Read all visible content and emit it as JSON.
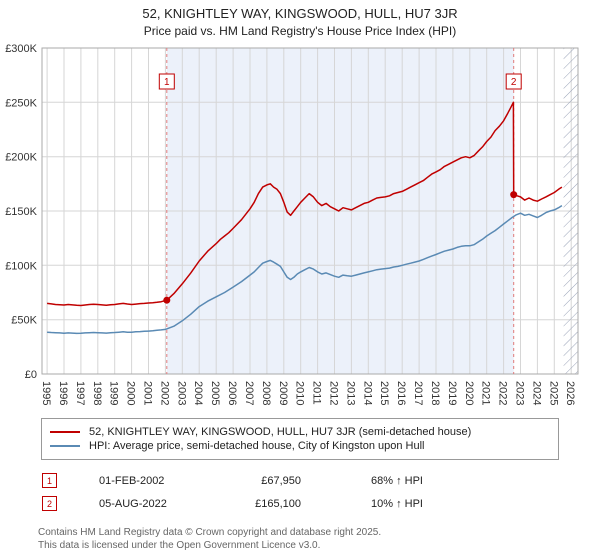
{
  "title": "52, KNIGHTLEY WAY, KINGSWOOD, HULL, HU7 3JR",
  "subtitle": "Price paid vs. HM Land Registry's House Price Index (HPI)",
  "chart_data": {
    "type": "line",
    "x_range": [
      1994.7,
      2026.4
    ],
    "y_range": [
      0,
      300
    ],
    "y_unit": "GBP thousands",
    "y_tick_values": [
      0,
      50,
      100,
      150,
      200,
      250,
      300
    ],
    "y_ticks": [
      "£0",
      "£50K",
      "£100K",
      "£150K",
      "£200K",
      "£250K",
      "£300K"
    ],
    "x_ticks": [
      1995,
      1996,
      1997,
      1998,
      1999,
      2000,
      2001,
      2002,
      2003,
      2004,
      2005,
      2006,
      2007,
      2008,
      2009,
      2010,
      2011,
      2012,
      2013,
      2014,
      2015,
      2016,
      2017,
      2018,
      2019,
      2020,
      2021,
      2022,
      2023,
      2024,
      2025,
      2026
    ],
    "grid": true,
    "shaded_region": [
      2002.08,
      2022.6
    ],
    "hatched_region": [
      2025.55,
      2026.4
    ],
    "series": [
      {
        "name": "52, KNIGHTLEY WAY, KINGSWOOD, HULL, HU7 3JR (semi-detached house)",
        "color": "#c00000",
        "points": [
          [
            1995.0,
            65
          ],
          [
            1995.25,
            64.5
          ],
          [
            1995.5,
            64
          ],
          [
            1995.75,
            63.8
          ],
          [
            1996.0,
            63.5
          ],
          [
            1996.25,
            64
          ],
          [
            1996.5,
            63.6
          ],
          [
            1996.75,
            63.2
          ],
          [
            1997.0,
            63
          ],
          [
            1997.25,
            63.5
          ],
          [
            1997.5,
            64
          ],
          [
            1997.75,
            64.2
          ],
          [
            1998.0,
            64
          ],
          [
            1998.25,
            63.6
          ],
          [
            1998.5,
            63.2
          ],
          [
            1998.75,
            63.8
          ],
          [
            1999.0,
            64
          ],
          [
            1999.25,
            64.5
          ],
          [
            1999.5,
            65
          ],
          [
            1999.75,
            64.4
          ],
          [
            2000.0,
            64
          ],
          [
            2000.25,
            64.3
          ],
          [
            2000.5,
            64.8
          ],
          [
            2000.75,
            65
          ],
          [
            2001.0,
            65.3
          ],
          [
            2001.25,
            65.6
          ],
          [
            2001.5,
            66
          ],
          [
            2001.75,
            66.5
          ],
          [
            2002.08,
            67.95
          ],
          [
            2002.5,
            74
          ],
          [
            2003.0,
            83
          ],
          [
            2003.5,
            93
          ],
          [
            2004.0,
            104
          ],
          [
            2004.5,
            113
          ],
          [
            2005.0,
            120
          ],
          [
            2005.25,
            124
          ],
          [
            2005.5,
            127
          ],
          [
            2005.75,
            130
          ],
          [
            2006.0,
            134
          ],
          [
            2006.5,
            142
          ],
          [
            2007.0,
            152
          ],
          [
            2007.25,
            158
          ],
          [
            2007.5,
            166
          ],
          [
            2007.75,
            172
          ],
          [
            2008.0,
            174
          ],
          [
            2008.2,
            175
          ],
          [
            2008.4,
            172
          ],
          [
            2008.6,
            170
          ],
          [
            2008.8,
            166
          ],
          [
            2009.0,
            158
          ],
          [
            2009.2,
            149
          ],
          [
            2009.4,
            146
          ],
          [
            2009.6,
            150
          ],
          [
            2009.8,
            154
          ],
          [
            2010.0,
            158
          ],
          [
            2010.25,
            162
          ],
          [
            2010.5,
            166
          ],
          [
            2010.75,
            163
          ],
          [
            2011.0,
            158
          ],
          [
            2011.25,
            155
          ],
          [
            2011.5,
            157
          ],
          [
            2011.75,
            154
          ],
          [
            2012.0,
            152
          ],
          [
            2012.25,
            150
          ],
          [
            2012.5,
            153
          ],
          [
            2012.75,
            152
          ],
          [
            2013.0,
            151
          ],
          [
            2013.25,
            153
          ],
          [
            2013.5,
            155
          ],
          [
            2013.75,
            157
          ],
          [
            2014.0,
            158
          ],
          [
            2014.25,
            160
          ],
          [
            2014.5,
            162
          ],
          [
            2014.75,
            162.5
          ],
          [
            2015.0,
            163
          ],
          [
            2015.25,
            164
          ],
          [
            2015.5,
            166
          ],
          [
            2015.75,
            167
          ],
          [
            2016.0,
            168
          ],
          [
            2016.25,
            170
          ],
          [
            2016.5,
            172
          ],
          [
            2016.75,
            174
          ],
          [
            2017.0,
            176
          ],
          [
            2017.25,
            178
          ],
          [
            2017.5,
            181
          ],
          [
            2017.75,
            184
          ],
          [
            2018.0,
            186
          ],
          [
            2018.25,
            188
          ],
          [
            2018.5,
            191
          ],
          [
            2018.75,
            193
          ],
          [
            2019.0,
            195
          ],
          [
            2019.25,
            197
          ],
          [
            2019.5,
            199
          ],
          [
            2019.75,
            200
          ],
          [
            2020.0,
            199
          ],
          [
            2020.25,
            201
          ],
          [
            2020.5,
            205
          ],
          [
            2020.75,
            209
          ],
          [
            2021.0,
            214
          ],
          [
            2021.25,
            218
          ],
          [
            2021.5,
            224
          ],
          [
            2021.75,
            228
          ],
          [
            2022.0,
            233
          ],
          [
            2022.25,
            240
          ],
          [
            2022.45,
            246
          ],
          [
            2022.58,
            250
          ],
          [
            2022.6,
            165.1
          ],
          [
            2022.8,
            164
          ],
          [
            2023.0,
            163
          ],
          [
            2023.25,
            160
          ],
          [
            2023.5,
            162
          ],
          [
            2023.75,
            160
          ],
          [
            2024.0,
            159
          ],
          [
            2024.25,
            161
          ],
          [
            2024.5,
            163
          ],
          [
            2024.75,
            165
          ],
          [
            2025.0,
            167
          ],
          [
            2025.25,
            170
          ],
          [
            2025.45,
            172
          ]
        ]
      },
      {
        "name": "HPI: Average price, semi-detached house, City of Kingston upon Hull",
        "color": "#5a8ab4",
        "points": [
          [
            1995.0,
            38.5
          ],
          [
            1995.25,
            38.2
          ],
          [
            1995.5,
            38
          ],
          [
            1995.75,
            37.8
          ],
          [
            1996.0,
            37.5
          ],
          [
            1996.25,
            37.8
          ],
          [
            1996.5,
            37.6
          ],
          [
            1996.75,
            37.4
          ],
          [
            1997.0,
            37.5
          ],
          [
            1997.25,
            37.8
          ],
          [
            1997.5,
            38
          ],
          [
            1997.75,
            38.2
          ],
          [
            1998.0,
            38
          ],
          [
            1998.25,
            37.8
          ],
          [
            1998.5,
            37.6
          ],
          [
            1998.75,
            38
          ],
          [
            1999.0,
            38.2
          ],
          [
            1999.25,
            38.5
          ],
          [
            1999.5,
            38.8
          ],
          [
            1999.75,
            38.4
          ],
          [
            2000.0,
            38.5
          ],
          [
            2000.25,
            38.8
          ],
          [
            2000.5,
            39
          ],
          [
            2000.75,
            39.3
          ],
          [
            2001.0,
            39.5
          ],
          [
            2001.25,
            39.8
          ],
          [
            2001.5,
            40.2
          ],
          [
            2001.75,
            40.6
          ],
          [
            2002.0,
            41
          ],
          [
            2002.5,
            44
          ],
          [
            2003.0,
            49
          ],
          [
            2003.5,
            55
          ],
          [
            2004.0,
            62
          ],
          [
            2004.5,
            67
          ],
          [
            2005.0,
            71
          ],
          [
            2005.5,
            75
          ],
          [
            2006.0,
            80
          ],
          [
            2006.5,
            85
          ],
          [
            2007.0,
            91
          ],
          [
            2007.25,
            94
          ],
          [
            2007.5,
            98
          ],
          [
            2007.75,
            102
          ],
          [
            2008.0,
            103.5
          ],
          [
            2008.2,
            104.5
          ],
          [
            2008.4,
            103
          ],
          [
            2008.6,
            101
          ],
          [
            2008.8,
            99
          ],
          [
            2009.0,
            94
          ],
          [
            2009.2,
            89
          ],
          [
            2009.4,
            87
          ],
          [
            2009.6,
            89
          ],
          [
            2009.8,
            92
          ],
          [
            2010.0,
            94
          ],
          [
            2010.25,
            96
          ],
          [
            2010.5,
            98
          ],
          [
            2010.75,
            96.5
          ],
          [
            2011.0,
            94
          ],
          [
            2011.25,
            92
          ],
          [
            2011.5,
            93
          ],
          [
            2011.75,
            91.5
          ],
          [
            2012.0,
            90
          ],
          [
            2012.25,
            89
          ],
          [
            2012.5,
            91
          ],
          [
            2012.75,
            90.5
          ],
          [
            2013.0,
            90
          ],
          [
            2013.25,
            91
          ],
          [
            2013.5,
            92
          ],
          [
            2013.75,
            93
          ],
          [
            2014.0,
            94
          ],
          [
            2014.25,
            95
          ],
          [
            2014.5,
            96
          ],
          [
            2014.75,
            96.5
          ],
          [
            2015.0,
            97
          ],
          [
            2015.25,
            97.5
          ],
          [
            2015.5,
            98.5
          ],
          [
            2015.75,
            99
          ],
          [
            2016.0,
            100
          ],
          [
            2016.25,
            101
          ],
          [
            2016.5,
            102
          ],
          [
            2016.75,
            103
          ],
          [
            2017.0,
            104
          ],
          [
            2017.25,
            105.5
          ],
          [
            2017.5,
            107
          ],
          [
            2017.75,
            108.5
          ],
          [
            2018.0,
            110
          ],
          [
            2018.25,
            111.5
          ],
          [
            2018.5,
            113
          ],
          [
            2018.75,
            114
          ],
          [
            2019.0,
            115
          ],
          [
            2019.25,
            116.5
          ],
          [
            2019.5,
            117.5
          ],
          [
            2019.75,
            118
          ],
          [
            2020.0,
            118
          ],
          [
            2020.25,
            119
          ],
          [
            2020.5,
            121.5
          ],
          [
            2020.75,
            124
          ],
          [
            2021.0,
            127
          ],
          [
            2021.25,
            129.5
          ],
          [
            2021.5,
            132
          ],
          [
            2021.75,
            135
          ],
          [
            2022.0,
            138
          ],
          [
            2022.25,
            141
          ],
          [
            2022.5,
            144
          ],
          [
            2022.75,
            146.5
          ],
          [
            2023.0,
            148
          ],
          [
            2023.25,
            146
          ],
          [
            2023.5,
            147
          ],
          [
            2023.75,
            145.5
          ],
          [
            2024.0,
            144
          ],
          [
            2024.25,
            146
          ],
          [
            2024.5,
            148.5
          ],
          [
            2024.75,
            150
          ],
          [
            2025.0,
            151
          ],
          [
            2025.25,
            153
          ],
          [
            2025.45,
            155
          ]
        ]
      }
    ],
    "markers": [
      {
        "label": "1",
        "x": 2002.08,
        "y": 67.95
      },
      {
        "label": "2",
        "x": 2022.6,
        "y": 165.1
      }
    ],
    "legend_position": "bottom"
  },
  "transactions": [
    {
      "num": "1",
      "date": "01-FEB-2002",
      "price": "£67,950",
      "hpi": "68% ↑ HPI"
    },
    {
      "num": "2",
      "date": "05-AUG-2022",
      "price": "£165,100",
      "hpi": "10% ↑ HPI"
    }
  ],
  "footer": [
    "Contains HM Land Registry data © Crown copyright and database right 2025.",
    "This data is licensed under the Open Government Licence v3.0."
  ]
}
